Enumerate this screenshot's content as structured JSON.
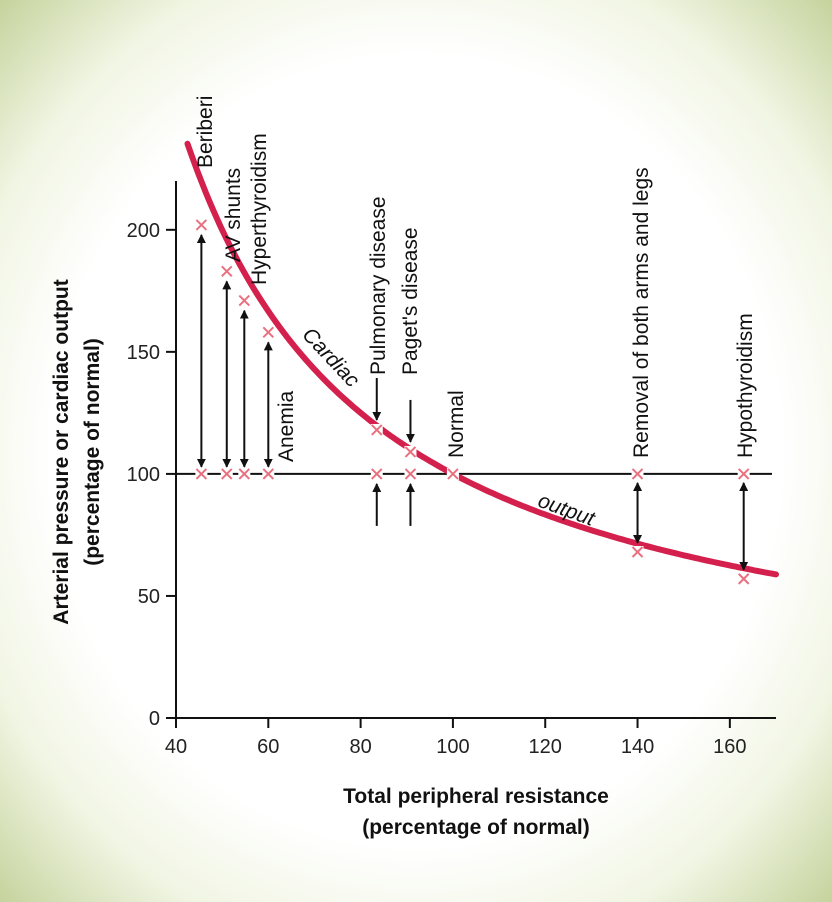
{
  "chart_data": {
    "type": "line",
    "xlabel_lines": [
      "Total peripheral resistance",
      "(percentage of normal)"
    ],
    "ylabel_lines": [
      "Arterial pressure or cardiac output",
      "(percentage of normal)"
    ],
    "xlim": [
      40,
      170
    ],
    "ylim": [
      0,
      220
    ],
    "xticks": [
      40,
      60,
      80,
      100,
      120,
      140,
      160
    ],
    "yticks": [
      0,
      50,
      100,
      150,
      200
    ],
    "reference_line": {
      "y": 100
    },
    "curve": {
      "label_parts": [
        "Cardiac",
        "output"
      ],
      "color": "#d4204c",
      "x_start": 42.5,
      "x_end": 170,
      "constant": 10000
    },
    "conditions": [
      {
        "name": "Beriberi",
        "x": 45.5,
        "cardiac_output": 202,
        "arrow": "up"
      },
      {
        "name": "AV shunts",
        "x": 51,
        "cardiac_output": 183,
        "arrow": "up"
      },
      {
        "name": "Hyperthyroidism",
        "x": 54.8,
        "cardiac_output": 171,
        "arrow": "up"
      },
      {
        "name": "Anemia",
        "x": 60,
        "cardiac_output": 158,
        "arrow": "up"
      },
      {
        "name": "Pulmonary disease",
        "x": 83.5,
        "cardiac_output": 118,
        "arrow": "down"
      },
      {
        "name": "Paget's disease",
        "x": 90.8,
        "cardiac_output": 109,
        "arrow": "down"
      },
      {
        "name": "Normal",
        "x": 100,
        "cardiac_output": 100,
        "arrow": "none"
      },
      {
        "name": "Removal of both arms and legs",
        "x": 140,
        "cardiac_output": 68,
        "arrow": "both"
      },
      {
        "name": "Hypothyroidism",
        "x": 163,
        "cardiac_output": 57,
        "arrow": "both"
      }
    ],
    "marker_color": "#e8707f"
  }
}
